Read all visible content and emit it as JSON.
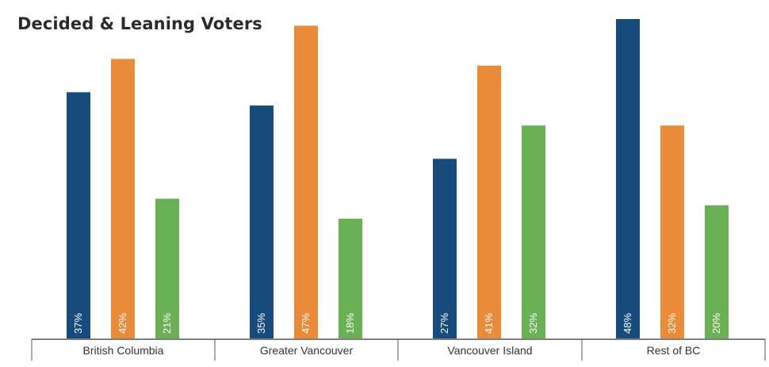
{
  "chart_data": {
    "type": "bar",
    "title": "Decided & Leaning Voters",
    "categories": [
      "British Columbia",
      "Greater Vancouver",
      "Vancouver Island",
      "Rest of BC"
    ],
    "series": [
      {
        "values": [
          37,
          35,
          27,
          48
        ],
        "labels": [
          "37%",
          "35%",
          "27%",
          "48%"
        ],
        "color": "#174b7c"
      },
      {
        "values": [
          42,
          47,
          41,
          32
        ],
        "labels": [
          "42%",
          "47%",
          "41%",
          "32%"
        ],
        "color": "#e98b39"
      },
      {
        "values": [
          21,
          18,
          32,
          20
        ],
        "labels": [
          "21%",
          "18%",
          "32%",
          "20%"
        ],
        "color": "#6ab155"
      }
    ],
    "ylim": [
      0,
      48
    ],
    "grid": false,
    "legend": "none"
  }
}
